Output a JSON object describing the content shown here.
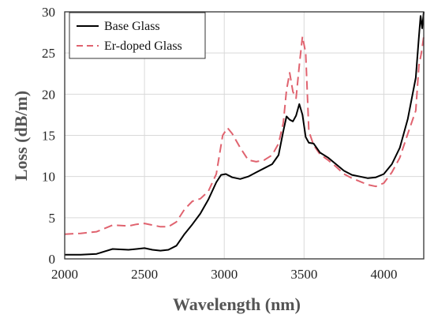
{
  "chart_data": {
    "type": "line",
    "xlabel": "Wavelength (nm)",
    "ylabel": "Loss (dB/m)",
    "xlim": [
      2000,
      4250
    ],
    "ylim": [
      0,
      30
    ],
    "x_ticks": [
      2000,
      2500,
      3000,
      3500,
      4000
    ],
    "y_ticks": [
      0,
      5,
      10,
      15,
      20,
      25,
      30
    ],
    "grid": true,
    "legend_position": "top-left",
    "series": [
      {
        "name": "Base Glass",
        "color": "#000000",
        "dash": "solid",
        "points": [
          [
            2000,
            0.5
          ],
          [
            2100,
            0.5
          ],
          [
            2200,
            0.6
          ],
          [
            2250,
            0.9
          ],
          [
            2300,
            1.2
          ],
          [
            2350,
            1.15
          ],
          [
            2400,
            1.1
          ],
          [
            2450,
            1.2
          ],
          [
            2500,
            1.3
          ],
          [
            2550,
            1.1
          ],
          [
            2600,
            1.0
          ],
          [
            2650,
            1.1
          ],
          [
            2700,
            1.6
          ],
          [
            2750,
            3.0
          ],
          [
            2800,
            4.2
          ],
          [
            2850,
            5.5
          ],
          [
            2900,
            7.2
          ],
          [
            2950,
            9.3
          ],
          [
            2980,
            10.2
          ],
          [
            3010,
            10.3
          ],
          [
            3050,
            9.9
          ],
          [
            3100,
            9.7
          ],
          [
            3150,
            10.0
          ],
          [
            3200,
            10.5
          ],
          [
            3250,
            11.0
          ],
          [
            3300,
            11.5
          ],
          [
            3340,
            12.6
          ],
          [
            3370,
            15.5
          ],
          [
            3390,
            17.3
          ],
          [
            3410,
            16.9
          ],
          [
            3430,
            16.7
          ],
          [
            3450,
            17.4
          ],
          [
            3470,
            18.8
          ],
          [
            3490,
            17.5
          ],
          [
            3510,
            14.8
          ],
          [
            3530,
            14.1
          ],
          [
            3560,
            14.0
          ],
          [
            3600,
            12.9
          ],
          [
            3650,
            12.3
          ],
          [
            3700,
            11.5
          ],
          [
            3750,
            10.7
          ],
          [
            3800,
            10.2
          ],
          [
            3850,
            10.0
          ],
          [
            3900,
            9.8
          ],
          [
            3950,
            9.9
          ],
          [
            4000,
            10.3
          ],
          [
            4050,
            11.5
          ],
          [
            4100,
            13.5
          ],
          [
            4150,
            17.0
          ],
          [
            4200,
            22.0
          ],
          [
            4220,
            27.0
          ],
          [
            4230,
            29.5
          ],
          [
            4240,
            28.0
          ],
          [
            4250,
            30.0
          ]
        ]
      },
      {
        "name": "Er-doped Glass",
        "color": "#e0636f",
        "dash": "dashed",
        "points": [
          [
            2000,
            3.0
          ],
          [
            2100,
            3.1
          ],
          [
            2200,
            3.3
          ],
          [
            2250,
            3.7
          ],
          [
            2300,
            4.1
          ],
          [
            2350,
            4.05
          ],
          [
            2400,
            4.0
          ],
          [
            2450,
            4.2
          ],
          [
            2500,
            4.3
          ],
          [
            2550,
            4.1
          ],
          [
            2600,
            3.9
          ],
          [
            2650,
            3.9
          ],
          [
            2700,
            4.5
          ],
          [
            2750,
            6.0
          ],
          [
            2800,
            7.0
          ],
          [
            2850,
            7.3
          ],
          [
            2900,
            8.2
          ],
          [
            2950,
            10.3
          ],
          [
            2990,
            15.0
          ],
          [
            3020,
            15.9
          ],
          [
            3050,
            15.2
          ],
          [
            3100,
            13.5
          ],
          [
            3150,
            12.0
          ],
          [
            3200,
            11.8
          ],
          [
            3250,
            12.0
          ],
          [
            3300,
            12.6
          ],
          [
            3340,
            14.0
          ],
          [
            3370,
            16.5
          ],
          [
            3390,
            20.5
          ],
          [
            3410,
            22.6
          ],
          [
            3430,
            20.3
          ],
          [
            3450,
            19.5
          ],
          [
            3470,
            23.5
          ],
          [
            3490,
            27.0
          ],
          [
            3510,
            25.0
          ],
          [
            3530,
            15.5
          ],
          [
            3560,
            13.8
          ],
          [
            3600,
            12.7
          ],
          [
            3650,
            12.0
          ],
          [
            3700,
            11.2
          ],
          [
            3750,
            10.3
          ],
          [
            3800,
            9.8
          ],
          [
            3850,
            9.4
          ],
          [
            3900,
            9.0
          ],
          [
            3950,
            8.8
          ],
          [
            4000,
            9.2
          ],
          [
            4050,
            10.5
          ],
          [
            4100,
            12.3
          ],
          [
            4150,
            15.2
          ],
          [
            4200,
            18.0
          ],
          [
            4220,
            23.5
          ],
          [
            4235,
            25.0
          ],
          [
            4250,
            27.0
          ]
        ]
      }
    ]
  }
}
